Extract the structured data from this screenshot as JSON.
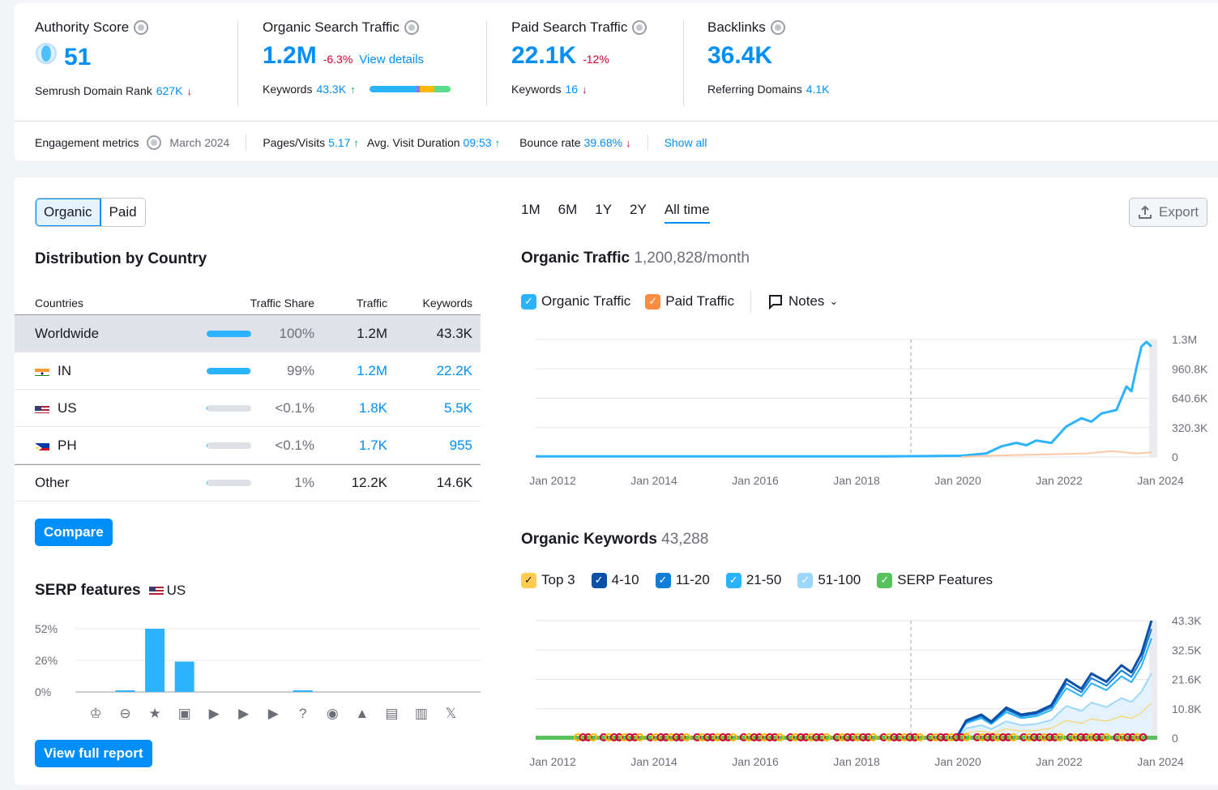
{
  "summary": {
    "authority": {
      "label": "Authority Score",
      "value": "51",
      "sub_label": "Semrush Domain Rank",
      "sub_value": "627K"
    },
    "organic": {
      "label": "Organic Search Traffic",
      "value": "1.2M",
      "change": "-6.3%",
      "link": "View details",
      "sub_label": "Keywords",
      "sub_value": "43.3K"
    },
    "paid": {
      "label": "Paid Search Traffic",
      "value": "22.1K",
      "change": "-12%",
      "sub_label": "Keywords",
      "sub_value": "16"
    },
    "backlinks": {
      "label": "Backlinks",
      "value": "36.4K",
      "sub_label": "Referring Domains",
      "sub_value": "4.1K"
    }
  },
  "engagement": {
    "label": "Engagement metrics",
    "date": "March 2024",
    "pages_label": "Pages/Visits",
    "pages_value": "5.17",
    "duration_label": "Avg. Visit Duration",
    "duration_value": "09:53",
    "bounce_label": "Bounce rate",
    "bounce_value": "39.68%",
    "show_all": "Show all"
  },
  "toggle": {
    "organic": "Organic",
    "paid": "Paid"
  },
  "distribution": {
    "title": "Distribution by Country",
    "headers": {
      "countries": "Countries",
      "share": "Traffic Share",
      "traffic": "Traffic",
      "keywords": "Keywords"
    },
    "rows": [
      {
        "country": "Worldwide",
        "share": "100%",
        "share_frac": 1.0,
        "traffic": "1.2M",
        "keywords": "43.3K"
      },
      {
        "country": "IN",
        "share": "99%",
        "share_frac": 0.99,
        "traffic": "1.2M",
        "keywords": "22.2K"
      },
      {
        "country": "US",
        "share": "<0.1%",
        "share_frac": 0.01,
        "traffic": "1.8K",
        "keywords": "5.5K"
      },
      {
        "country": "PH",
        "share": "<0.1%",
        "share_frac": 0.01,
        "traffic": "1.7K",
        "keywords": "955"
      },
      {
        "country": "Other",
        "share": "1%",
        "share_frac": 0.01,
        "traffic": "12.2K",
        "keywords": "14.6K"
      }
    ],
    "compare": "Compare"
  },
  "serp": {
    "title": "SERP features",
    "country": "US",
    "yticks": [
      "52%",
      "26%",
      "0%"
    ],
    "values": [
      0,
      1,
      52,
      25,
      0,
      0,
      0,
      1,
      0,
      0,
      0,
      0,
      0
    ],
    "icons": [
      "crown-icon",
      "link-icon",
      "star-icon",
      "image-icon",
      "video-icon",
      "video-box-icon",
      "play-icon",
      "question-icon",
      "pin-icon",
      "graduation-icon",
      "news-icon",
      "briefcase-icon",
      "x-icon"
    ],
    "view_full": "View full report"
  },
  "range_tabs": [
    "1M",
    "6M",
    "1Y",
    "2Y",
    "All time"
  ],
  "export": "Export",
  "organic_traffic": {
    "title": "Organic Traffic",
    "value": "1,200,828/month",
    "legend": {
      "organic": "Organic Traffic",
      "paid": "Paid Traffic",
      "notes": "Notes"
    },
    "yticks": [
      "1.3M",
      "960.8K",
      "640.6K",
      "320.3K",
      "0"
    ],
    "xticks": [
      "Jan 2012",
      "Jan 2014",
      "Jan 2016",
      "Jan 2018",
      "Jan 2020",
      "Jan 2022",
      "Jan 2024"
    ]
  },
  "organic_keywords": {
    "title": "Organic Keywords",
    "value": "43,288",
    "legend": {
      "top3": "Top 3",
      "r4": "4-10",
      "r11": "11-20",
      "r21": "21-50",
      "r51": "51-100",
      "serp": "SERP Features"
    },
    "yticks": [
      "43.3K",
      "32.5K",
      "21.6K",
      "10.8K",
      "0"
    ],
    "xticks": [
      "Jan 2012",
      "Jan 2014",
      "Jan 2016",
      "Jan 2018",
      "Jan 2020",
      "Jan 2022",
      "Jan 2024"
    ]
  },
  "colors": {
    "accent": "#008ff8",
    "organic": "#2bb3ff",
    "paid": "#ff8c43",
    "serp_green": "#59c15c"
  }
}
